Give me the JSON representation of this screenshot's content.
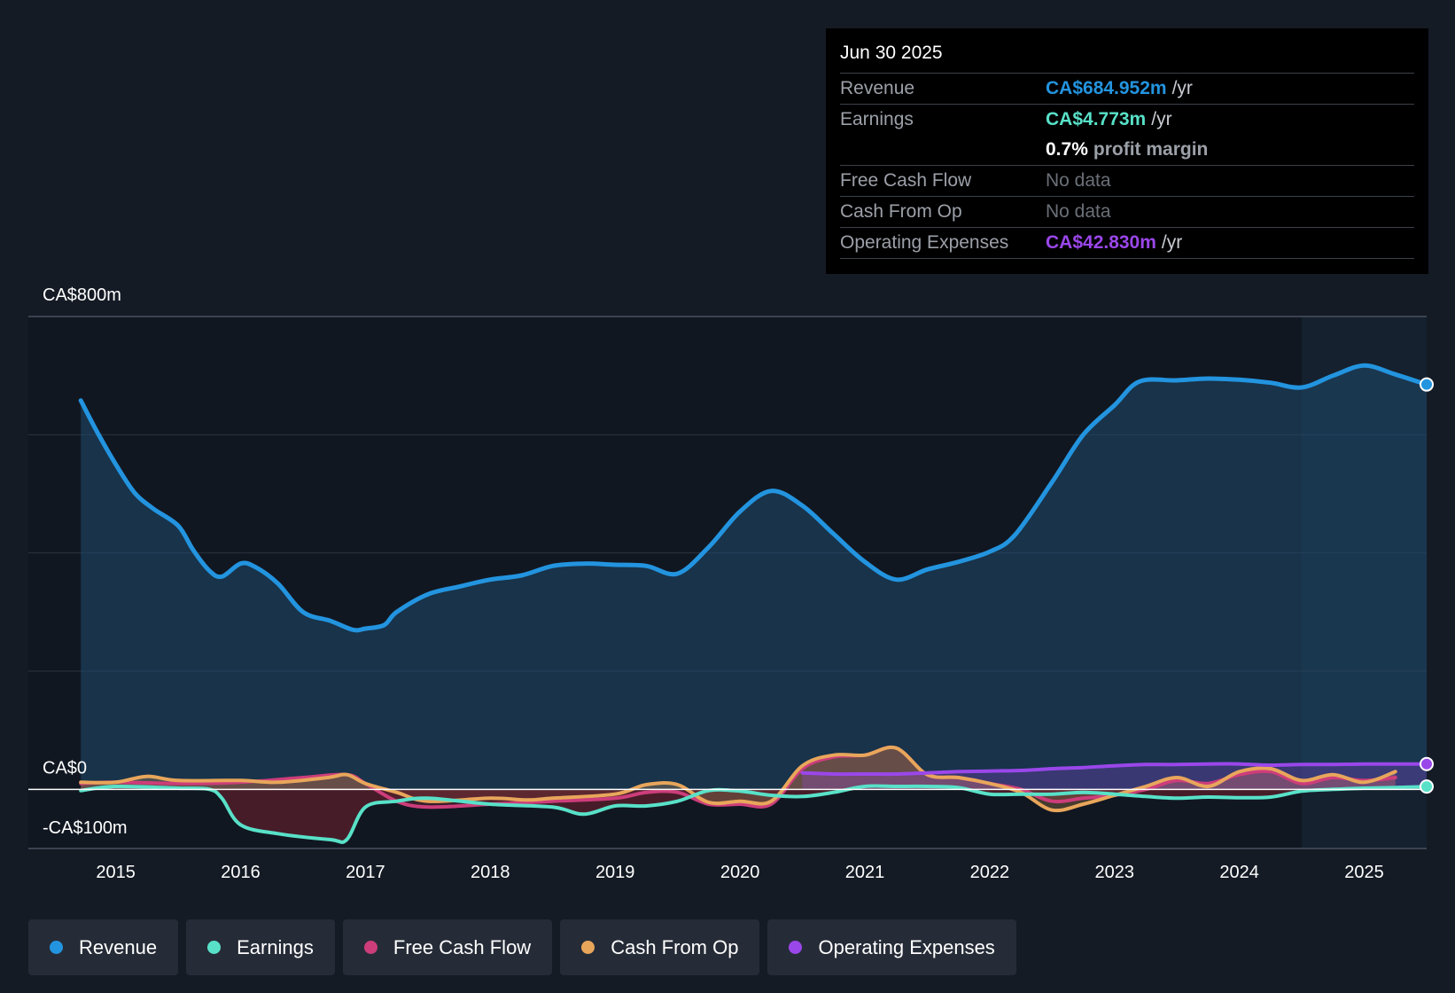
{
  "chart_data": {
    "type": "line",
    "title": "",
    "xlabel": "",
    "ylabel": "",
    "ylim": [
      -100,
      800
    ],
    "y_labels": {
      "top": "CA$800m",
      "zero": "CA$0",
      "bottom": "-CA$100m"
    },
    "x_ticks": [
      "2015",
      "2016",
      "2017",
      "2018",
      "2019",
      "2020",
      "2021",
      "2022",
      "2023",
      "2024",
      "2025"
    ],
    "x_tick_values": [
      2015,
      2016,
      2017,
      2018,
      2019,
      2020,
      2021,
      2022,
      2023,
      2024,
      2025
    ],
    "xlim": [
      2014.3,
      2025.5
    ],
    "shaded_from": 2024.5,
    "series": [
      {
        "name": "Revenue",
        "key": "revenue",
        "color": "#2394df",
        "x": [
          2014.72,
          2014.85,
          2015.0,
          2015.15,
          2015.3,
          2015.5,
          2015.62,
          2015.75,
          2015.85,
          2016.0,
          2016.12,
          2016.3,
          2016.5,
          2016.72,
          2016.9,
          2017.0,
          2017.15,
          2017.25,
          2017.5,
          2017.75,
          2018.0,
          2018.25,
          2018.5,
          2018.75,
          2019.0,
          2019.25,
          2019.5,
          2019.75,
          2020.0,
          2020.25,
          2020.5,
          2020.75,
          2021.0,
          2021.25,
          2021.5,
          2021.75,
          2022.0,
          2022.2,
          2022.5,
          2022.75,
          2023.0,
          2023.2,
          2023.5,
          2023.75,
          2024.0,
          2024.25,
          2024.5,
          2024.75,
          2025.0,
          2025.25,
          2025.5
        ],
        "values": [
          658,
          605,
          550,
          502,
          475,
          446,
          405,
          370,
          360,
          382,
          376,
          348,
          300,
          285,
          270,
          272,
          278,
          300,
          330,
          343,
          355,
          362,
          378,
          382,
          380,
          378,
          365,
          410,
          470,
          505,
          480,
          432,
          385,
          355,
          372,
          385,
          402,
          430,
          520,
          600,
          650,
          690,
          692,
          695,
          693,
          688,
          680,
          700,
          717,
          702,
          685
        ]
      },
      {
        "name": "Earnings",
        "key": "earnings",
        "color": "#58e1c8",
        "x": [
          2014.72,
          2015.0,
          2015.5,
          2015.75,
          2015.85,
          2016.0,
          2016.3,
          2016.72,
          2016.85,
          2017.0,
          2017.25,
          2017.5,
          2018.0,
          2018.5,
          2018.75,
          2019.0,
          2019.25,
          2019.5,
          2019.75,
          2020.0,
          2020.25,
          2020.5,
          2020.75,
          2021.0,
          2021.25,
          2021.5,
          2021.75,
          2022.0,
          2022.25,
          2022.5,
          2022.75,
          2023.0,
          2023.25,
          2023.5,
          2023.75,
          2024.0,
          2024.25,
          2024.5,
          2024.75,
          2025.0,
          2025.25,
          2025.5
        ],
        "values": [
          -2,
          5,
          2,
          0,
          -15,
          -60,
          -75,
          -85,
          -85,
          -30,
          -20,
          -15,
          -25,
          -30,
          -42,
          -28,
          -28,
          -20,
          -2,
          -3,
          -10,
          -12,
          -5,
          5,
          5,
          5,
          3,
          -8,
          -8,
          -8,
          -5,
          -8,
          -12,
          -15,
          -13,
          -14,
          -13,
          -3,
          0,
          2,
          3,
          4.773
        ]
      },
      {
        "name": "Free Cash Flow",
        "key": "fcf",
        "color": "#cc3d7a",
        "x": [
          2014.72,
          2015.0,
          2015.5,
          2016.0,
          2016.5,
          2016.85,
          2017.0,
          2017.25,
          2017.5,
          2018.0,
          2018.5,
          2019.0,
          2019.25,
          2019.5,
          2019.75,
          2020.0,
          2020.25,
          2020.5,
          2020.75,
          2021.0,
          2021.25,
          2021.5,
          2021.75,
          2022.0,
          2022.25,
          2022.5,
          2022.75,
          2023.0,
          2023.25,
          2023.5,
          2023.75,
          2024.0,
          2024.25,
          2024.5,
          2024.75,
          2025.0,
          2025.25
        ],
        "values": [
          10,
          12,
          10,
          12,
          20,
          25,
          10,
          -20,
          -30,
          -25,
          -20,
          -15,
          -5,
          -5,
          -25,
          -25,
          -25,
          35,
          55,
          58,
          70,
          25,
          20,
          10,
          0,
          -20,
          -15,
          -10,
          0,
          15,
          10,
          25,
          30,
          10,
          20,
          15,
          20
        ]
      },
      {
        "name": "Cash From Op",
        "key": "cfo",
        "color": "#e8a65b",
        "x": [
          2014.72,
          2015.0,
          2015.25,
          2015.5,
          2016.0,
          2016.3,
          2016.7,
          2016.85,
          2017.0,
          2017.25,
          2017.5,
          2018.0,
          2018.3,
          2018.5,
          2019.0,
          2019.25,
          2019.5,
          2019.75,
          2020.0,
          2020.25,
          2020.5,
          2020.75,
          2021.0,
          2021.25,
          2021.5,
          2021.75,
          2022.0,
          2022.25,
          2022.5,
          2022.75,
          2023.0,
          2023.25,
          2023.5,
          2023.75,
          2024.0,
          2024.25,
          2024.5,
          2024.75,
          2025.0,
          2025.25
        ],
        "values": [
          12,
          12,
          22,
          15,
          15,
          12,
          20,
          25,
          10,
          -5,
          -20,
          -15,
          -18,
          -15,
          -8,
          8,
          8,
          -22,
          -20,
          -20,
          40,
          58,
          58,
          70,
          25,
          20,
          10,
          -5,
          -35,
          -25,
          -10,
          5,
          20,
          5,
          30,
          35,
          15,
          25,
          12,
          30
        ]
      },
      {
        "name": "Operating Expenses",
        "key": "opex",
        "color": "#9a47ea",
        "x": [
          2020.5,
          2020.75,
          2021.0,
          2021.25,
          2021.5,
          2021.75,
          2022.0,
          2022.25,
          2022.5,
          2022.75,
          2023.0,
          2023.25,
          2023.5,
          2023.75,
          2024.0,
          2024.25,
          2024.5,
          2024.75,
          2025.0,
          2025.25,
          2025.5
        ],
        "values": [
          28,
          26,
          26,
          26,
          28,
          30,
          31,
          32,
          35,
          37,
          40,
          42,
          42,
          43,
          43,
          41,
          42,
          42,
          43,
          43,
          42.83
        ]
      }
    ]
  },
  "tooltip": {
    "date": "Jun 30 2025",
    "rows": [
      {
        "label": "Revenue",
        "value": "CA$684.952m",
        "unit": "/yr",
        "color": "#2394df"
      },
      {
        "label": "Earnings",
        "value": "CA$4.773m",
        "unit": "/yr",
        "color": "#58e1c8"
      },
      {
        "label": "",
        "value": "0.7%",
        "unit": "profit margin",
        "color": "#ffffff"
      },
      {
        "label": "Free Cash Flow",
        "value": "No data",
        "unit": "",
        "color": "#6b7078"
      },
      {
        "label": "Cash From Op",
        "value": "No data",
        "unit": "",
        "color": "#6b7078"
      },
      {
        "label": "Operating Expenses",
        "value": "CA$42.830m",
        "unit": "/yr",
        "color": "#9a47ea"
      }
    ]
  },
  "legend": [
    {
      "label": "Revenue",
      "color": "#2394df"
    },
    {
      "label": "Earnings",
      "color": "#58e1c8"
    },
    {
      "label": "Free Cash Flow",
      "color": "#cc3d7a"
    },
    {
      "label": "Cash From Op",
      "color": "#e8a65b"
    },
    {
      "label": "Operating Expenses",
      "color": "#9a47ea"
    }
  ]
}
